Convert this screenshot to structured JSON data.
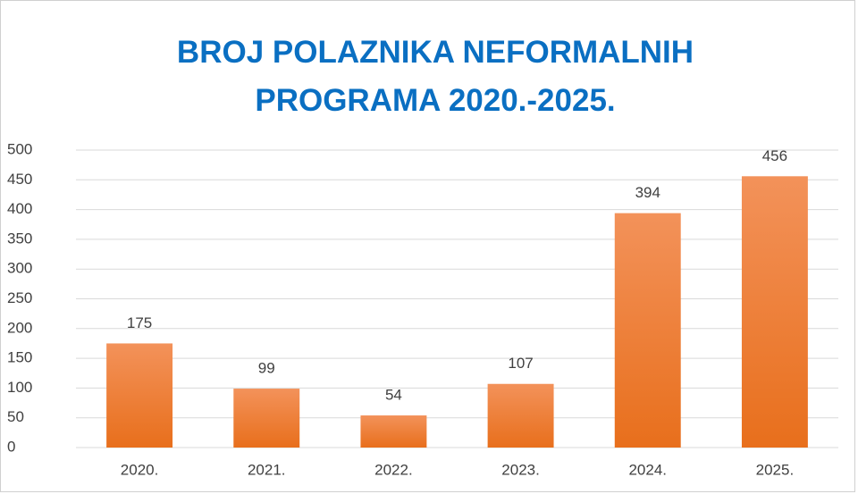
{
  "chart_data": {
    "type": "bar",
    "title": "BROJ POLAZNIKA NEFORMALNIH PROGRAMA 2020.-2025.",
    "categories": [
      "2020.",
      "2021.",
      "2022.",
      "2023.",
      "2024.",
      "2025."
    ],
    "values": [
      175,
      99,
      54,
      107,
      394,
      456
    ],
    "color": "#ee7b2e",
    "ylim": [
      0,
      500
    ],
    "yticks": [
      0,
      50,
      100,
      150,
      200,
      250,
      300,
      350,
      400,
      450,
      500
    ],
    "grid": true
  }
}
